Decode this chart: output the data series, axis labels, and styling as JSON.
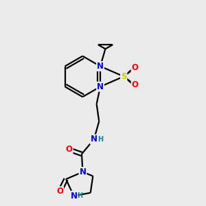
{
  "bg_color": "#ebebeb",
  "atom_colors": {
    "C": "#000000",
    "N": "#0000ee",
    "O": "#ff0000",
    "S": "#cccc00",
    "H": "#008888"
  },
  "bond_color": "#000000",
  "bond_lw": 1.6,
  "font_size": 8.5,
  "title": "",
  "figsize": [
    3.0,
    3.0
  ],
  "dpi": 100,
  "xlim": [
    0,
    10
  ],
  "ylim": [
    0,
    10
  ]
}
